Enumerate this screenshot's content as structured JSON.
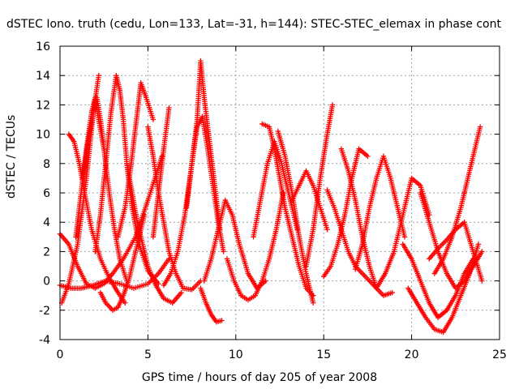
{
  "chart_data": {
    "type": "scatter",
    "title": "dSTEC Iono. truth (cedu, Lon=133, Lat=-31, h=144): STEC-STEC_elemax in phase cont",
    "xlabel": "GPS time / hours of day 205 of year 2008",
    "ylabel": "dSTEC  / TECUs",
    "xlim": [
      0,
      25
    ],
    "ylim": [
      -4,
      16
    ],
    "xticks": [
      0,
      5,
      10,
      15,
      20,
      25
    ],
    "yticks": [
      -4,
      -2,
      0,
      2,
      4,
      6,
      8,
      10,
      12,
      14,
      16
    ],
    "grid": true,
    "marker": "+",
    "color": "#ff0000",
    "series": [
      {
        "x": [
          0.0,
          0.5,
          1.0,
          1.5,
          2.0,
          2.5,
          3.0,
          3.6,
          4.3,
          5.0,
          5.8
        ],
        "y": [
          3.2,
          2.5,
          1.0,
          -0.2,
          -0.5,
          -0.2,
          0.5,
          1.5,
          3.0,
          5.5,
          8.5
        ]
      },
      {
        "x": [
          0.1,
          0.5,
          1.0,
          1.5,
          1.9,
          2.2
        ],
        "y": [
          -1.5,
          -0.2,
          2.5,
          7.0,
          11.5,
          14.0
        ]
      },
      {
        "x": [
          0.0,
          0.6,
          1.2,
          1.9,
          2.6,
          3.4,
          4.2,
          5.0,
          5.6,
          6.2
        ],
        "y": [
          -0.3,
          -0.5,
          -0.5,
          -0.3,
          0.0,
          -0.2,
          -0.5,
          -0.2,
          0.5,
          1.5
        ]
      },
      {
        "x": [
          0.5,
          0.8,
          1.1,
          1.4,
          1.8,
          2.3,
          2.8,
          3.3,
          3.7
        ],
        "y": [
          10.0,
          9.5,
          8.0,
          6.0,
          3.5,
          1.5,
          0.2,
          -0.8,
          -1.5
        ]
      },
      {
        "x": [
          0.9,
          1.2,
          1.5,
          1.8,
          2.0,
          2.2,
          2.5
        ],
        "y": [
          3.0,
          6.0,
          9.0,
          11.5,
          12.5,
          11.0,
          9.0
        ]
      },
      {
        "x": [
          1.3,
          1.6,
          1.9,
          2.1,
          2.3,
          2.5,
          2.8,
          3.1,
          3.4,
          3.8
        ],
        "y": [
          7.0,
          9.5,
          11.5,
          12.5,
          11.0,
          9.0,
          6.0,
          3.5,
          1.5,
          0.0
        ]
      },
      {
        "x": [
          2.0,
          2.3,
          2.6,
          2.9,
          3.2,
          3.4,
          3.6,
          3.8,
          4.1,
          4.5,
          5.0,
          5.6
        ],
        "y": [
          2.0,
          4.5,
          8.0,
          11.5,
          14.0,
          13.0,
          11.0,
          8.0,
          5.0,
          2.5,
          0.7,
          -0.2
        ]
      },
      {
        "x": [
          2.3,
          2.6,
          3.0,
          3.3,
          3.6,
          3.9,
          4.2,
          4.5,
          4.8
        ],
        "y": [
          -0.8,
          -1.5,
          -2.0,
          -1.8,
          -1.0,
          0.0,
          1.5,
          3.0,
          4.5
        ]
      },
      {
        "x": [
          3.3,
          3.7,
          4.0,
          4.3,
          4.6,
          4.9,
          5.3
        ],
        "y": [
          3.0,
          5.0,
          7.5,
          10.5,
          13.5,
          12.5,
          11.0
        ]
      },
      {
        "x": [
          3.8,
          4.1,
          4.4,
          4.7,
          5.0,
          5.4,
          5.9,
          6.4,
          6.9
        ],
        "y": [
          8.0,
          6.0,
          4.0,
          2.5,
          1.0,
          -0.2,
          -1.2,
          -1.5,
          -0.8
        ]
      },
      {
        "x": [
          5.0,
          5.3,
          5.6,
          5.9,
          6.2,
          6.6,
          7.0,
          7.5,
          8.0
        ],
        "y": [
          10.5,
          8.5,
          6.0,
          4.0,
          2.0,
          0.5,
          -0.5,
          -0.6,
          0.0
        ]
      },
      {
        "x": [
          5.3,
          5.6,
          5.9,
          6.2
        ],
        "y": [
          3.0,
          6.0,
          9.0,
          11.8
        ]
      },
      {
        "x": [
          5.9,
          6.3,
          6.7,
          7.1,
          7.5,
          7.8,
          8.0,
          8.2,
          8.5,
          8.8,
          9.1
        ],
        "y": [
          -0.3,
          0.5,
          2.0,
          4.5,
          8.0,
          11.0,
          15.0,
          12.5,
          9.5,
          6.5,
          3.5
        ]
      },
      {
        "x": [
          7.2,
          7.5,
          7.8,
          8.1,
          8.4,
          8.7,
          9.0,
          9.3
        ],
        "y": [
          5.0,
          8.0,
          10.5,
          11.2,
          9.0,
          6.5,
          4.0,
          2.0
        ]
      },
      {
        "x": [
          8.0,
          8.3,
          8.6,
          8.9,
          9.2
        ],
        "y": [
          -0.5,
          -1.5,
          -2.3,
          -2.8,
          -2.7
        ]
      },
      {
        "x": [
          8.2,
          8.6,
          9.0,
          9.4,
          9.8,
          10.2,
          10.7,
          11.2,
          11.7
        ],
        "y": [
          0.0,
          1.5,
          3.5,
          5.5,
          4.5,
          2.5,
          0.5,
          -0.5,
          0.0
        ]
      },
      {
        "x": [
          9.5,
          9.9,
          10.3,
          10.7,
          11.1,
          11.5,
          11.9,
          12.3,
          12.7
        ],
        "y": [
          1.5,
          0.0,
          -1.0,
          -1.3,
          -1.0,
          0.0,
          1.5,
          3.5,
          6.0
        ]
      },
      {
        "x": [
          11.5,
          11.9,
          12.2,
          12.5,
          12.8,
          13.2,
          13.6,
          14.0,
          14.4
        ],
        "y": [
          10.7,
          10.5,
          9.0,
          7.0,
          5.0,
          3.0,
          1.0,
          -0.5,
          -1.0
        ]
      },
      {
        "x": [
          11.0,
          11.4,
          11.8,
          12.2,
          12.6,
          13.0,
          13.5
        ],
        "y": [
          3.0,
          5.5,
          8.0,
          9.5,
          8.0,
          6.0,
          3.5
        ]
      },
      {
        "x": [
          12.4,
          12.8,
          13.2,
          13.6,
          14.0,
          14.4
        ],
        "y": [
          10.2,
          8.5,
          6.0,
          3.0,
          0.5,
          -1.5
        ]
      },
      {
        "x": [
          13.2,
          13.6,
          14.0,
          14.4,
          14.8,
          15.2
        ],
        "y": [
          5.5,
          6.5,
          7.5,
          6.5,
          5.0,
          3.5
        ]
      },
      {
        "x": [
          14.0,
          14.4,
          14.8,
          15.2,
          15.5
        ],
        "y": [
          1.0,
          3.5,
          7.0,
          10.0,
          12.0
        ]
      },
      {
        "x": [
          15.2,
          15.6,
          16.0,
          16.4,
          16.8,
          17.2,
          17.6,
          18.0
        ],
        "y": [
          6.2,
          5.0,
          3.5,
          2.0,
          1.0,
          0.5,
          0.0,
          -0.5
        ]
      },
      {
        "x": [
          15.0,
          15.4,
          15.8,
          16.2,
          16.6,
          17.0,
          17.5
        ],
        "y": [
          0.3,
          1.0,
          2.5,
          4.5,
          7.0,
          9.0,
          8.5
        ]
      },
      {
        "x": [
          16.0,
          16.4,
          16.8,
          17.2,
          17.6,
          18.0,
          18.4,
          18.9
        ],
        "y": [
          9.0,
          7.5,
          5.5,
          3.0,
          1.0,
          -0.5,
          -1.0,
          -0.8
        ]
      },
      {
        "x": [
          16.8,
          17.2,
          17.6,
          18.0,
          18.4,
          18.8,
          19.2,
          19.6
        ],
        "y": [
          0.8,
          2.5,
          5.0,
          7.0,
          8.5,
          7.0,
          5.0,
          3.0
        ]
      },
      {
        "x": [
          18.0,
          18.5,
          19.0,
          19.5,
          20.0,
          20.5,
          21.0
        ],
        "y": [
          -0.5,
          0.5,
          2.0,
          4.5,
          7.0,
          6.5,
          4.5
        ]
      },
      {
        "x": [
          19.5,
          20.0,
          20.5,
          21.0,
          21.5,
          22.0,
          22.5,
          23.0,
          23.5
        ],
        "y": [
          2.5,
          1.5,
          0.0,
          -1.5,
          -2.5,
          -2.0,
          -1.0,
          0.5,
          1.5
        ]
      },
      {
        "x": [
          19.8,
          20.3,
          20.8,
          21.3,
          21.8,
          22.3,
          22.8,
          23.3,
          23.8
        ],
        "y": [
          -0.5,
          -1.5,
          -2.5,
          -3.3,
          -3.5,
          -2.5,
          -1.0,
          0.5,
          2.5
        ]
      },
      {
        "x": [
          20.5,
          21.0,
          21.5,
          22.0,
          22.5,
          23.0,
          23.5,
          24.0
        ],
        "y": [
          6.0,
          4.0,
          2.0,
          0.5,
          -0.5,
          0.0,
          1.0,
          2.0
        ]
      },
      {
        "x": [
          21.3,
          21.8,
          22.3,
          22.8,
          23.2,
          23.6,
          23.9
        ],
        "y": [
          0.5,
          1.5,
          3.0,
          5.0,
          7.0,
          9.0,
          10.5
        ]
      },
      {
        "x": [
          21.0,
          21.5,
          22.0,
          22.5,
          23.0,
          23.5,
          24.0
        ],
        "y": [
          1.5,
          2.2,
          2.8,
          3.5,
          4.0,
          2.0,
          0.0
        ]
      }
    ]
  }
}
